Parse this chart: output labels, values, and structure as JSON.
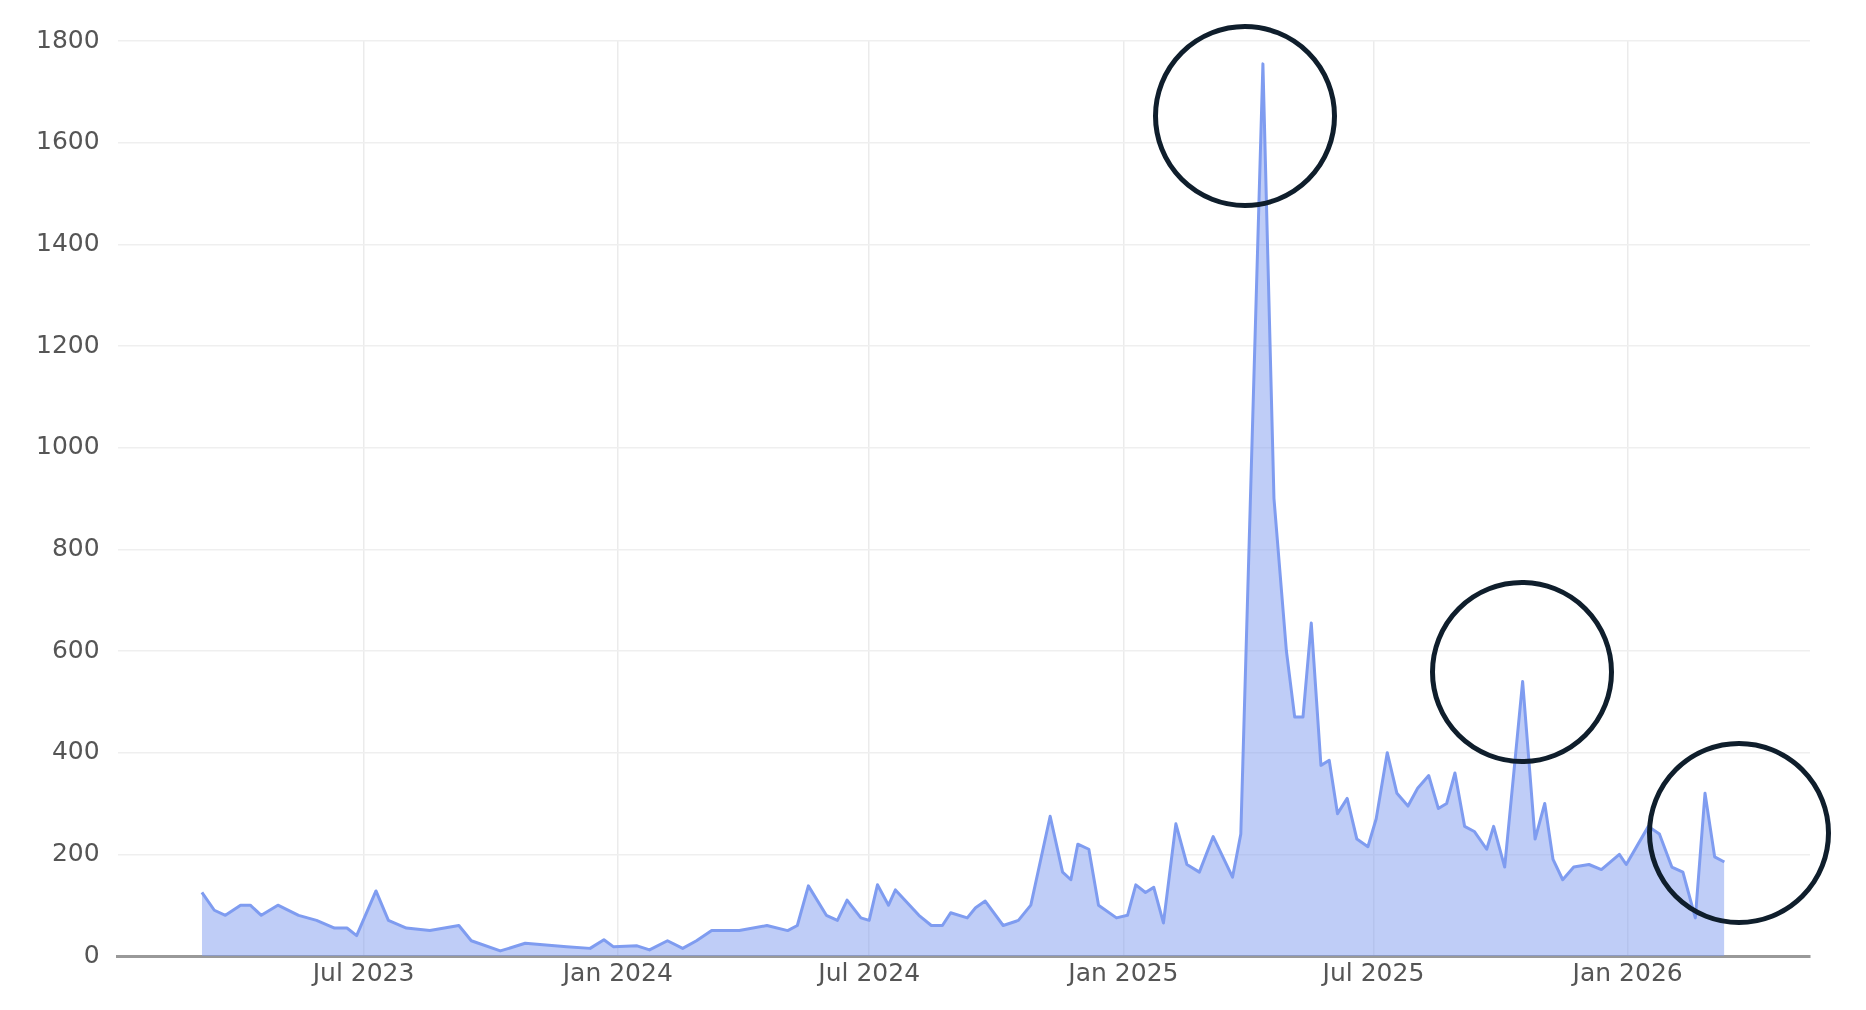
{
  "chart_data": {
    "type": "area",
    "x": [
      "2023-03-06",
      "2023-03-15",
      "2023-03-23",
      "2023-04-03",
      "2023-04-10",
      "2023-04-18",
      "2023-04-30",
      "2023-05-15",
      "2023-05-28",
      "2023-06-10",
      "2023-06-19",
      "2023-06-26",
      "2023-07-10",
      "2023-07-19",
      "2023-08-01",
      "2023-08-18",
      "2023-09-08",
      "2023-09-17",
      "2023-10-08",
      "2023-10-26",
      "2023-11-25",
      "2023-12-12",
      "2023-12-22",
      "2023-12-29",
      "2024-01-15",
      "2024-01-24",
      "2024-02-06",
      "2024-02-17",
      "2024-02-27",
      "2024-03-09",
      "2024-03-29",
      "2024-04-18",
      "2024-05-03",
      "2024-05-10",
      "2024-05-18",
      "2024-05-31",
      "2024-06-08",
      "2024-06-15",
      "2024-06-25",
      "2024-07-01",
      "2024-07-07",
      "2024-07-15",
      "2024-07-20",
      "2024-08-06",
      "2024-08-15",
      "2024-08-23",
      "2024-08-29",
      "2024-09-10",
      "2024-09-16",
      "2024-09-23",
      "2024-10-06",
      "2024-10-17",
      "2024-10-26",
      "2024-11-09",
      "2024-11-18",
      "2024-11-24",
      "2024-11-29",
      "2024-12-07",
      "2024-12-14",
      "2024-12-27",
      "2025-01-04",
      "2025-01-10",
      "2025-01-17",
      "2025-01-23",
      "2025-01-30",
      "2025-02-08",
      "2025-02-16",
      "2025-02-25",
      "2025-03-07",
      "2025-03-21",
      "2025-03-27",
      "2025-04-12",
      "2025-04-20",
      "2025-04-29",
      "2025-05-05",
      "2025-05-11",
      "2025-05-17",
      "2025-05-24",
      "2025-05-30",
      "2025-06-05",
      "2025-06-12",
      "2025-06-19",
      "2025-06-27",
      "2025-07-03",
      "2025-07-11",
      "2025-07-18",
      "2025-07-26",
      "2025-08-02",
      "2025-08-10",
      "2025-08-17",
      "2025-08-23",
      "2025-08-29",
      "2025-09-05",
      "2025-09-12",
      "2025-09-21",
      "2025-09-26",
      "2025-10-04",
      "2025-10-17",
      "2025-10-26",
      "2025-11-02",
      "2025-11-08",
      "2025-11-15",
      "2025-11-23",
      "2025-12-04",
      "2025-12-13",
      "2025-12-26",
      "2025-12-31",
      "2026-01-16",
      "2026-01-24",
      "2026-02-02",
      "2026-02-10",
      "2026-02-19",
      "2026-02-26",
      "2026-03-05",
      "2026-03-12"
    ],
    "series": [
      {
        "color": "#7f9cf0",
        "values": [
          125,
          90,
          80,
          100,
          100,
          80,
          100,
          80,
          70,
          55,
          55,
          40,
          128,
          70,
          55,
          50,
          60,
          30,
          10,
          25,
          18,
          15,
          32,
          18,
          20,
          12,
          30,
          15,
          30,
          50,
          50,
          60,
          50,
          60,
          138,
          80,
          70,
          110,
          75,
          70,
          140,
          100,
          130,
          80,
          60,
          60,
          85,
          75,
          95,
          108,
          60,
          70,
          100,
          275,
          165,
          150,
          220,
          210,
          100,
          75,
          80,
          140,
          125,
          135,
          65,
          260,
          180,
          165,
          235,
          155,
          240,
          1755,
          900,
          600,
          470,
          470,
          655,
          375,
          385,
          280,
          310,
          230,
          215,
          270,
          400,
          320,
          295,
          330,
          355,
          290,
          300,
          360,
          255,
          245,
          210,
          255,
          175,
          540,
          230,
          300,
          190,
          150,
          175,
          180,
          170,
          200,
          180,
          255,
          240,
          175,
          165,
          75,
          320,
          195,
          185
        ]
      }
    ],
    "xlim": [
      "2023-01-04",
      "2026-05-13"
    ],
    "xticks": [
      {
        "value": "2023-07-01",
        "label": "Jul 2023"
      },
      {
        "value": "2024-01-01",
        "label": "Jan 2024"
      },
      {
        "value": "2024-07-01",
        "label": "Jul 2024"
      },
      {
        "value": "2025-01-01",
        "label": "Jan 2025"
      },
      {
        "value": "2025-07-01",
        "label": "Jul 2025"
      },
      {
        "value": "2026-01-01",
        "label": "Jan 2026"
      }
    ],
    "ylim": [
      0,
      1800
    ],
    "yticks": [
      0,
      200,
      400,
      600,
      800,
      1000,
      1200,
      1400,
      1600,
      1800
    ],
    "grid": true,
    "legend": false
  }
}
